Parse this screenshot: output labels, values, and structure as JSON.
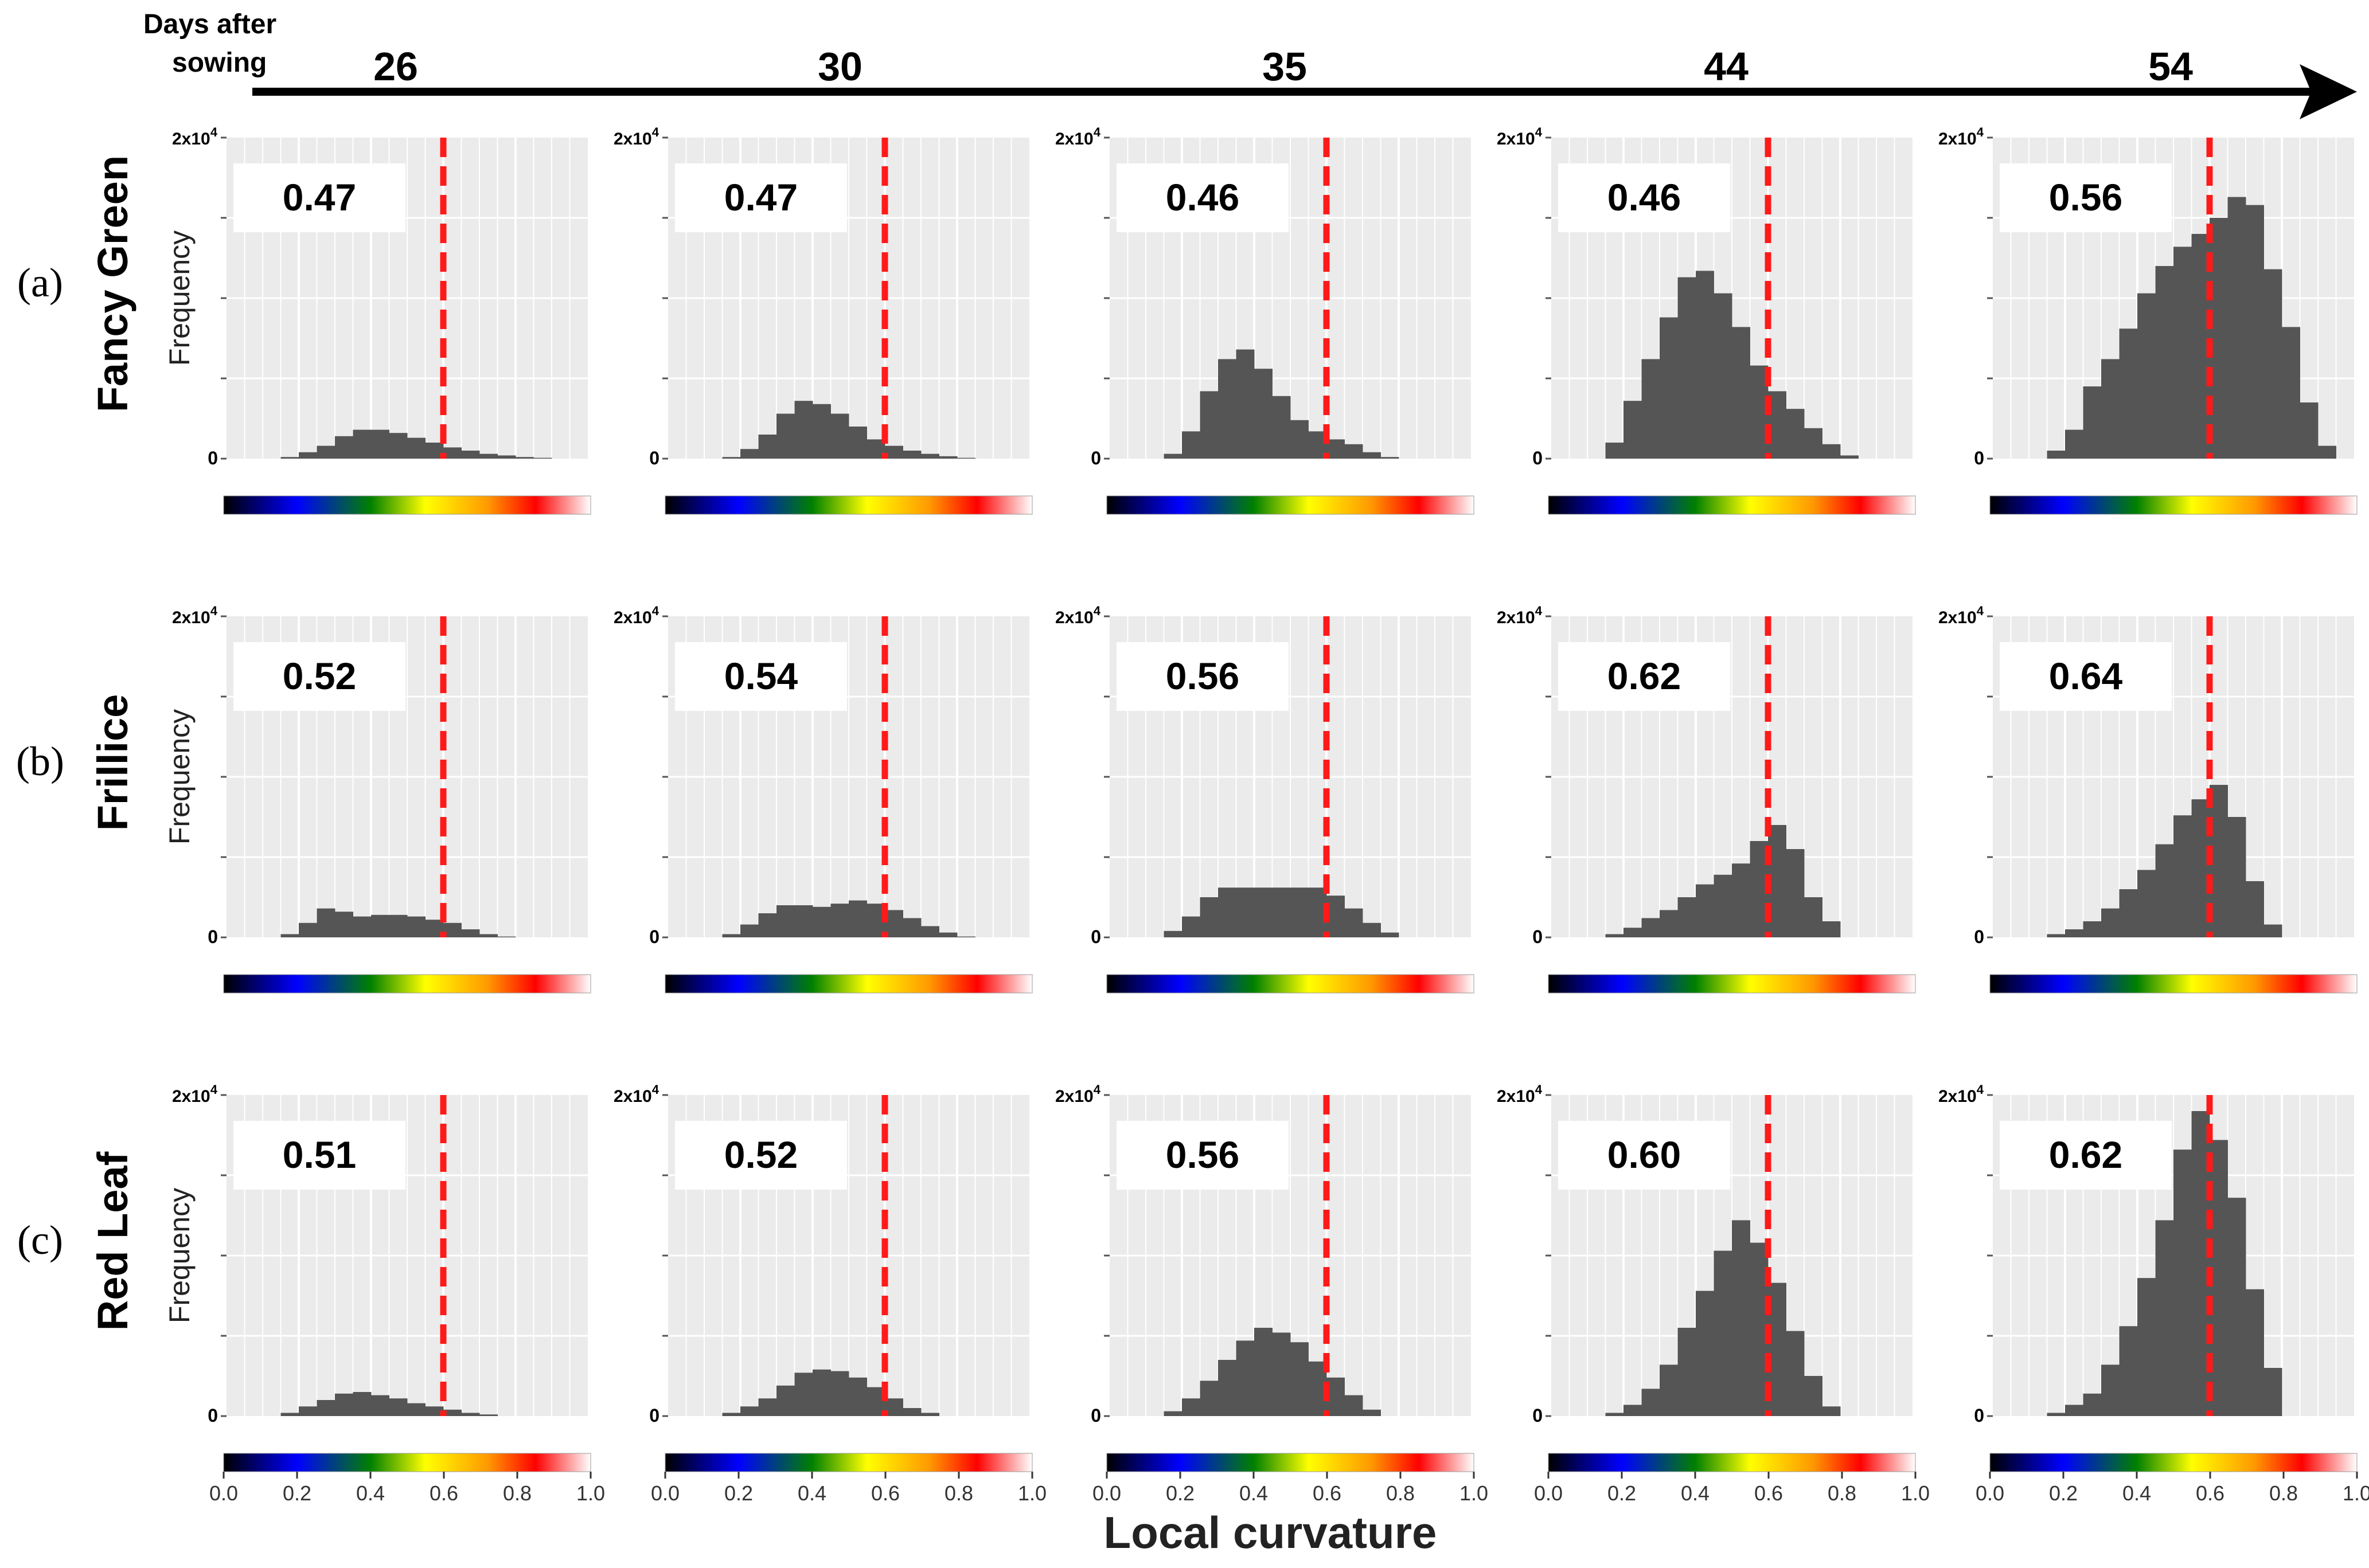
{
  "header": {
    "days_label_line1": "Days after",
    "days_label_line2": "sowing",
    "days": [
      "26",
      "30",
      "35",
      "44",
      "54"
    ]
  },
  "rows": [
    {
      "letter": "(a)",
      "cultivar": "Fancy Green",
      "ylabel": "Frequency"
    },
    {
      "letter": "(b)",
      "cultivar": "Frillice",
      "ylabel": "Frequency"
    },
    {
      "letter": "(c)",
      "cultivar": "Red Leaf",
      "ylabel": "Frequency"
    }
  ],
  "x_axis_title": "Local curvature",
  "x_ticks": [
    "0.0",
    "0.2",
    "0.4",
    "0.6",
    "0.8",
    "1.0"
  ],
  "y_top_label_base": "2x10",
  "y_top_label_exp": "4",
  "y_zero_label": "0",
  "colorbar_stops": [
    "#000000",
    "#0000ff",
    "#008000",
    "#ffff00",
    "#ff9900",
    "#ff0000",
    "#ffffff"
  ],
  "chart_data": {
    "type": "bar",
    "description": "Histograms of local curvature, 3 cultivars x 5 days after sowing; dashed line marks mean",
    "x_range": [
      0,
      1
    ],
    "ylim": [
      0,
      20000
    ],
    "bin_width": 0.05,
    "bin_starts": [
      0.15,
      0.2,
      0.25,
      0.3,
      0.35,
      0.4,
      0.45,
      0.5,
      0.55,
      0.6,
      0.65,
      0.7,
      0.75,
      0.8,
      0.85,
      0.9
    ],
    "mean_line_x": 0.6,
    "panels": [
      [
        {
          "label": "0.47",
          "values": [
            100,
            400,
            800,
            1400,
            1800,
            1800,
            1600,
            1300,
            1000,
            700,
            500,
            300,
            200,
            100,
            50,
            0
          ]
        },
        {
          "label": "0.47",
          "values": [
            100,
            600,
            1500,
            2800,
            3600,
            3400,
            2800,
            2000,
            1200,
            800,
            500,
            300,
            150,
            50,
            0,
            0
          ]
        },
        {
          "label": "0.46",
          "values": [
            300,
            1700,
            4200,
            6200,
            6800,
            5600,
            3900,
            2400,
            1700,
            1200,
            900,
            400,
            100,
            0,
            0,
            0
          ]
        },
        {
          "label": "0.46",
          "values": [
            1000,
            3600,
            6200,
            8800,
            11300,
            11700,
            10300,
            8200,
            5800,
            4200,
            3100,
            1900,
            900,
            200,
            0,
            0
          ]
        },
        {
          "label": "0.56",
          "values": [
            500,
            1800,
            4500,
            6200,
            8100,
            10300,
            12000,
            13200,
            14000,
            15000,
            16300,
            15800,
            11800,
            8200,
            3500,
            800
          ]
        }
      ],
      [
        {
          "label": "0.52",
          "values": [
            200,
            900,
            1800,
            1600,
            1300,
            1400,
            1400,
            1300,
            1100,
            900,
            500,
            200,
            50,
            0,
            0,
            0
          ]
        },
        {
          "label": "0.54",
          "values": [
            200,
            800,
            1500,
            2000,
            2000,
            1900,
            2100,
            2300,
            2100,
            1700,
            1200,
            700,
            300,
            50,
            0,
            0
          ]
        },
        {
          "label": "0.56",
          "values": [
            400,
            1300,
            2500,
            3100,
            3100,
            3100,
            3100,
            3100,
            3100,
            2600,
            1800,
            900,
            300,
            0,
            0,
            0
          ]
        },
        {
          "label": "0.62",
          "values": [
            200,
            600,
            1200,
            1700,
            2500,
            3300,
            3900,
            4600,
            6000,
            7000,
            5500,
            2500,
            1000,
            0,
            0,
            0
          ]
        },
        {
          "label": "0.64",
          "values": [
            200,
            500,
            1000,
            1800,
            3000,
            4200,
            5800,
            7600,
            8600,
            9500,
            7500,
            3500,
            800,
            0,
            0,
            0
          ]
        }
      ],
      [
        {
          "label": "0.51",
          "values": [
            200,
            600,
            1000,
            1400,
            1500,
            1300,
            1100,
            800,
            600,
            400,
            200,
            100,
            0,
            0,
            0,
            0
          ]
        },
        {
          "label": "0.52",
          "values": [
            200,
            600,
            1100,
            1900,
            2700,
            2900,
            2800,
            2400,
            1800,
            1100,
            500,
            200,
            0,
            0,
            0,
            0
          ]
        },
        {
          "label": "0.56",
          "values": [
            300,
            1100,
            2200,
            3500,
            4700,
            5500,
            5200,
            4600,
            3400,
            2400,
            1300,
            400,
            0,
            0,
            0,
            0
          ]
        },
        {
          "label": "0.60",
          "values": [
            200,
            700,
            1700,
            3200,
            5500,
            7800,
            10300,
            12200,
            10800,
            8300,
            5300,
            2500,
            600,
            0,
            0,
            0
          ]
        },
        {
          "label": "0.62",
          "values": [
            200,
            700,
            1400,
            3200,
            5600,
            8600,
            12200,
            16600,
            19000,
            17200,
            13600,
            7900,
            3000,
            0,
            0,
            0
          ]
        }
      ]
    ]
  }
}
